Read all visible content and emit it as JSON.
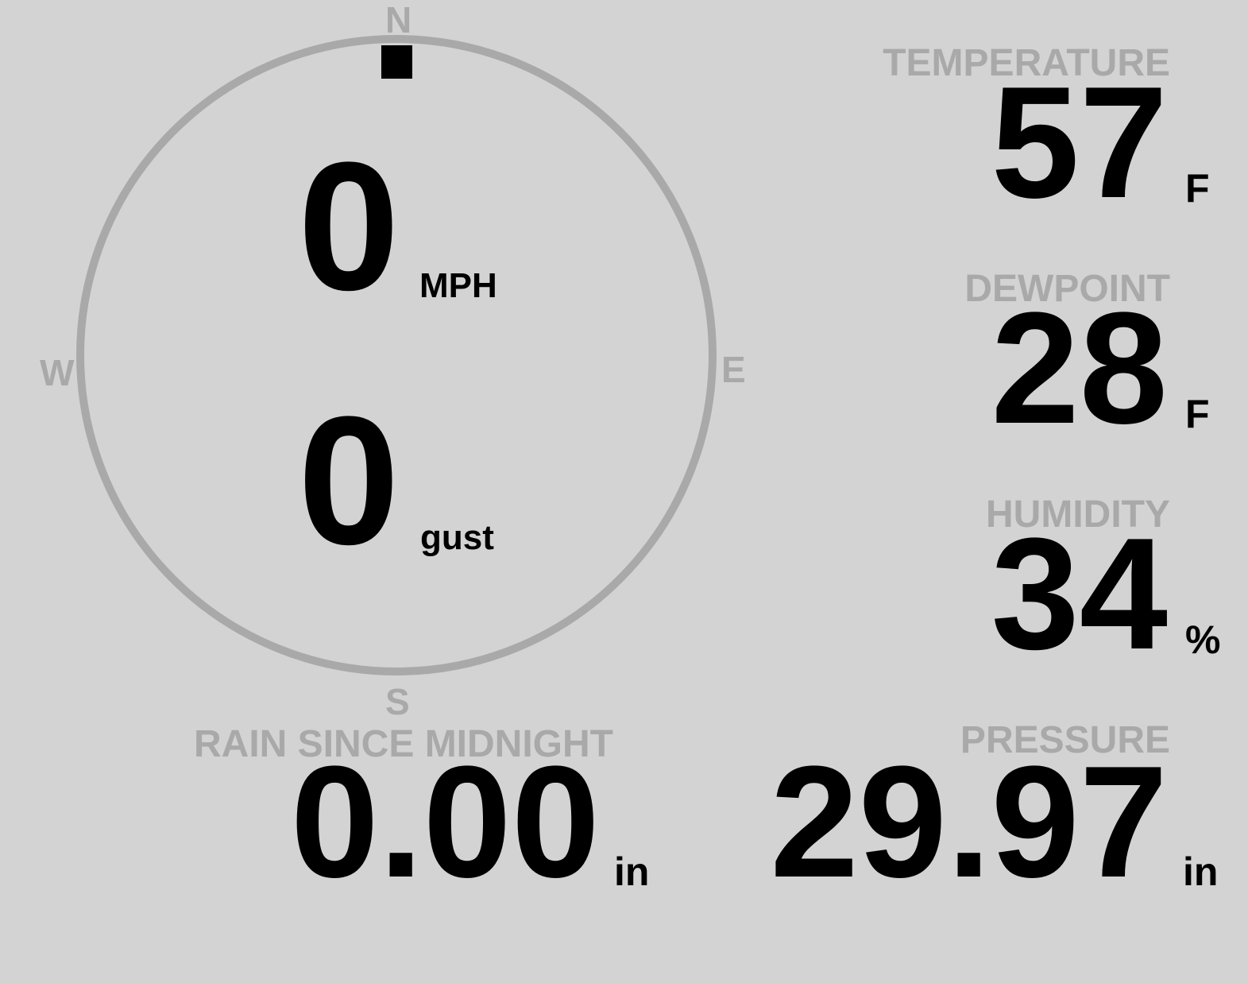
{
  "wind": {
    "compass": {
      "north": "N",
      "south": "S",
      "east": "E",
      "west": "W"
    },
    "direction_degrees": 0,
    "speed": "0",
    "speed_unit": "MPH",
    "gust": "0",
    "gust_unit": "gust"
  },
  "temperature": {
    "label": "TEMPERATURE",
    "value": "57",
    "unit": "F"
  },
  "dewpoint": {
    "label": "DEWPOINT",
    "value": "28",
    "unit": "F"
  },
  "humidity": {
    "label": "HUMIDITY",
    "value": "34",
    "unit": "%"
  },
  "rain": {
    "label": "RAIN SINCE MIDNIGHT",
    "value": "0.00",
    "unit": "in"
  },
  "pressure": {
    "label": "PRESSURE",
    "value": "29.97",
    "unit": "in"
  },
  "colors": {
    "background": "#d3d3d3",
    "label": "#a9a9a9",
    "value": "#000000"
  }
}
